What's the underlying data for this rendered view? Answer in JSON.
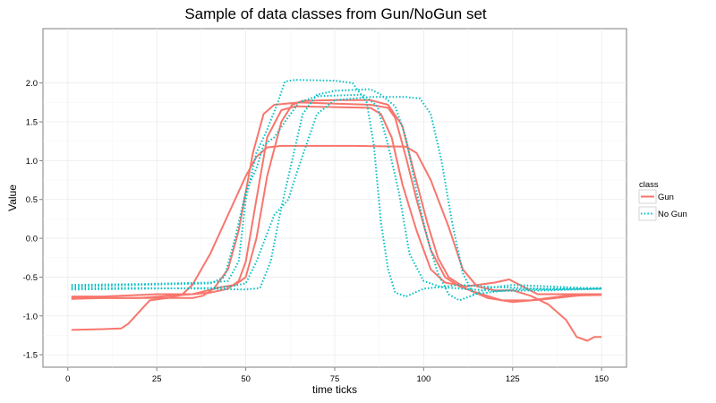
{
  "chart_data": {
    "type": "line",
    "title": "Sample of data classes from Gun/NoGun set",
    "xlabel": "time ticks",
    "ylabel": "Value",
    "xlim": [
      -7,
      157
    ],
    "ylim": [
      -1.66,
      2.7
    ],
    "xticks": [
      0,
      25,
      50,
      75,
      100,
      125,
      150
    ],
    "yticks": [
      -1.5,
      -1.0,
      -0.5,
      0.0,
      0.5,
      1.0,
      1.5,
      2.0
    ],
    "ytick_labels": [
      "-1.5",
      "-1.0",
      "-0.5",
      "0.0",
      "0.5",
      "1.0",
      "1.5",
      "2.0"
    ],
    "grid": true,
    "legend": {
      "title": "class",
      "position": "right"
    },
    "classes": [
      {
        "name": "Gun",
        "color": "#F8766D",
        "style": "solid"
      },
      {
        "name": "No Gun",
        "color": "#00BFC4",
        "style": "dotted"
      }
    ],
    "series": [
      {
        "class": "Gun",
        "points": [
          [
            1,
            -1.18
          ],
          [
            10,
            -1.17
          ],
          [
            15,
            -1.16
          ],
          [
            17,
            -1.1
          ],
          [
            20,
            -0.95
          ],
          [
            23,
            -0.8
          ],
          [
            28,
            -0.77
          ],
          [
            32,
            -0.73
          ],
          [
            35,
            -0.6
          ],
          [
            40,
            -0.2
          ],
          [
            45,
            0.3
          ],
          [
            50,
            0.8
          ],
          [
            53,
            1.05
          ],
          [
            56,
            1.17
          ],
          [
            60,
            1.19
          ],
          [
            80,
            1.19
          ],
          [
            95,
            1.18
          ],
          [
            98,
            1.1
          ],
          [
            102,
            0.75
          ],
          [
            107,
            0.15
          ],
          [
            111,
            -0.4
          ],
          [
            115,
            -0.62
          ],
          [
            120,
            -0.67
          ],
          [
            125,
            -0.67
          ],
          [
            130,
            -0.74
          ],
          [
            135,
            -0.85
          ],
          [
            140,
            -1.05
          ],
          [
            143,
            -1.27
          ],
          [
            146,
            -1.32
          ],
          [
            148,
            -1.27
          ],
          [
            150,
            -1.27
          ]
        ]
      },
      {
        "class": "Gun",
        "points": [
          [
            1,
            -0.78
          ],
          [
            10,
            -0.77
          ],
          [
            30,
            -0.77
          ],
          [
            35,
            -0.77
          ],
          [
            38,
            -0.74
          ],
          [
            41,
            -0.65
          ],
          [
            45,
            -0.4
          ],
          [
            48,
            0.1
          ],
          [
            52,
            1.1
          ],
          [
            55,
            1.6
          ],
          [
            58,
            1.72
          ],
          [
            65,
            1.75
          ],
          [
            85,
            1.72
          ],
          [
            90,
            1.68
          ],
          [
            92,
            1.55
          ],
          [
            95,
            1.05
          ],
          [
            98,
            0.5
          ],
          [
            102,
            -0.15
          ],
          [
            106,
            -0.5
          ],
          [
            110,
            -0.62
          ],
          [
            115,
            -0.7
          ],
          [
            122,
            -0.8
          ],
          [
            130,
            -0.8
          ],
          [
            140,
            -0.74
          ],
          [
            150,
            -0.73
          ]
        ]
      },
      {
        "class": "Gun",
        "points": [
          [
            1,
            -0.75
          ],
          [
            10,
            -0.75
          ],
          [
            25,
            -0.72
          ],
          [
            35,
            -0.72
          ],
          [
            40,
            -0.7
          ],
          [
            45,
            -0.65
          ],
          [
            48,
            -0.55
          ],
          [
            50,
            -0.3
          ],
          [
            53,
            0.5
          ],
          [
            56,
            1.3
          ],
          [
            60,
            1.65
          ],
          [
            64,
            1.7
          ],
          [
            85,
            1.68
          ],
          [
            88,
            1.6
          ],
          [
            91,
            1.3
          ],
          [
            94,
            0.7
          ],
          [
            98,
            0.1
          ],
          [
            102,
            -0.4
          ],
          [
            106,
            -0.57
          ],
          [
            112,
            -0.62
          ],
          [
            120,
            -0.57
          ],
          [
            124,
            -0.53
          ],
          [
            127,
            -0.6
          ],
          [
            132,
            -0.72
          ],
          [
            140,
            -0.72
          ],
          [
            150,
            -0.72
          ]
        ]
      },
      {
        "class": "Gun",
        "points": [
          [
            1,
            -0.77
          ],
          [
            20,
            -0.77
          ],
          [
            35,
            -0.72
          ],
          [
            43,
            -0.63
          ],
          [
            47,
            -0.6
          ],
          [
            50,
            -0.5
          ],
          [
            53,
            0.0
          ],
          [
            56,
            0.8
          ],
          [
            60,
            1.5
          ],
          [
            63,
            1.72
          ],
          [
            66,
            1.77
          ],
          [
            75,
            1.78
          ],
          [
            85,
            1.78
          ],
          [
            90,
            1.72
          ],
          [
            94,
            1.45
          ],
          [
            97,
            0.9
          ],
          [
            101,
            0.2
          ],
          [
            104,
            -0.25
          ],
          [
            107,
            -0.5
          ],
          [
            112,
            -0.65
          ],
          [
            118,
            -0.77
          ],
          [
            125,
            -0.82
          ],
          [
            135,
            -0.78
          ],
          [
            145,
            -0.73
          ],
          [
            150,
            -0.72
          ]
        ]
      },
      {
        "class": "No Gun",
        "points": [
          [
            1,
            -0.6
          ],
          [
            20,
            -0.59
          ],
          [
            40,
            -0.57
          ],
          [
            45,
            -0.55
          ],
          [
            48,
            -0.3
          ],
          [
            50,
            0.5
          ],
          [
            53,
            1.1
          ],
          [
            56,
            1.4
          ],
          [
            59,
            1.75
          ],
          [
            61,
            2.02
          ],
          [
            64,
            2.04
          ],
          [
            75,
            2.03
          ],
          [
            80,
            2.0
          ],
          [
            84,
            1.75
          ],
          [
            86,
            1.2
          ],
          [
            88,
            0.2
          ],
          [
            90,
            -0.4
          ],
          [
            92,
            -0.7
          ],
          [
            95,
            -0.75
          ],
          [
            100,
            -0.65
          ],
          [
            110,
            -0.6
          ],
          [
            120,
            -0.63
          ],
          [
            135,
            -0.65
          ],
          [
            150,
            -0.64
          ]
        ]
      },
      {
        "class": "No Gun",
        "points": [
          [
            1,
            -0.62
          ],
          [
            20,
            -0.6
          ],
          [
            40,
            -0.58
          ],
          [
            44,
            -0.5
          ],
          [
            47,
            0.0
          ],
          [
            50,
            0.6
          ],
          [
            53,
            0.9
          ],
          [
            55,
            1.2
          ],
          [
            58,
            1.3
          ],
          [
            61,
            1.5
          ],
          [
            65,
            1.75
          ],
          [
            70,
            1.83
          ],
          [
            83,
            1.85
          ],
          [
            87,
            1.7
          ],
          [
            90,
            1.2
          ],
          [
            93,
            0.6
          ],
          [
            96,
            -0.2
          ],
          [
            100,
            -0.55
          ],
          [
            105,
            -0.63
          ],
          [
            120,
            -0.68
          ],
          [
            135,
            -0.67
          ],
          [
            150,
            -0.65
          ]
        ]
      },
      {
        "class": "No Gun",
        "points": [
          [
            1,
            -0.64
          ],
          [
            20,
            -0.64
          ],
          [
            40,
            -0.65
          ],
          [
            50,
            -0.66
          ],
          [
            54,
            -0.64
          ],
          [
            57,
            -0.3
          ],
          [
            60,
            0.4
          ],
          [
            63,
            1.0
          ],
          [
            66,
            1.6
          ],
          [
            70,
            1.85
          ],
          [
            75,
            1.9
          ],
          [
            85,
            1.92
          ],
          [
            88,
            1.85
          ],
          [
            92,
            1.7
          ],
          [
            95,
            1.3
          ],
          [
            98,
            0.6
          ],
          [
            101,
            0.0
          ],
          [
            104,
            -0.45
          ],
          [
            107,
            -0.72
          ],
          [
            110,
            -0.8
          ],
          [
            114,
            -0.73
          ],
          [
            118,
            -0.64
          ],
          [
            125,
            -0.6
          ],
          [
            135,
            -0.62
          ],
          [
            150,
            -0.65
          ]
        ]
      },
      {
        "class": "No Gun",
        "points": [
          [
            1,
            -0.66
          ],
          [
            20,
            -0.65
          ],
          [
            40,
            -0.64
          ],
          [
            46,
            -0.62
          ],
          [
            50,
            -0.58
          ],
          [
            53,
            -0.3
          ],
          [
            58,
            0.3
          ],
          [
            62,
            0.5
          ],
          [
            64,
            0.8
          ],
          [
            67,
            1.2
          ],
          [
            70,
            1.6
          ],
          [
            75,
            1.78
          ],
          [
            85,
            1.82
          ],
          [
            95,
            1.82
          ],
          [
            99,
            1.8
          ],
          [
            102,
            1.6
          ],
          [
            105,
            1.0
          ],
          [
            108,
            0.2
          ],
          [
            111,
            -0.45
          ],
          [
            114,
            -0.72
          ],
          [
            118,
            -0.7
          ],
          [
            125,
            -0.66
          ],
          [
            135,
            -0.66
          ],
          [
            150,
            -0.65
          ]
        ]
      }
    ]
  }
}
